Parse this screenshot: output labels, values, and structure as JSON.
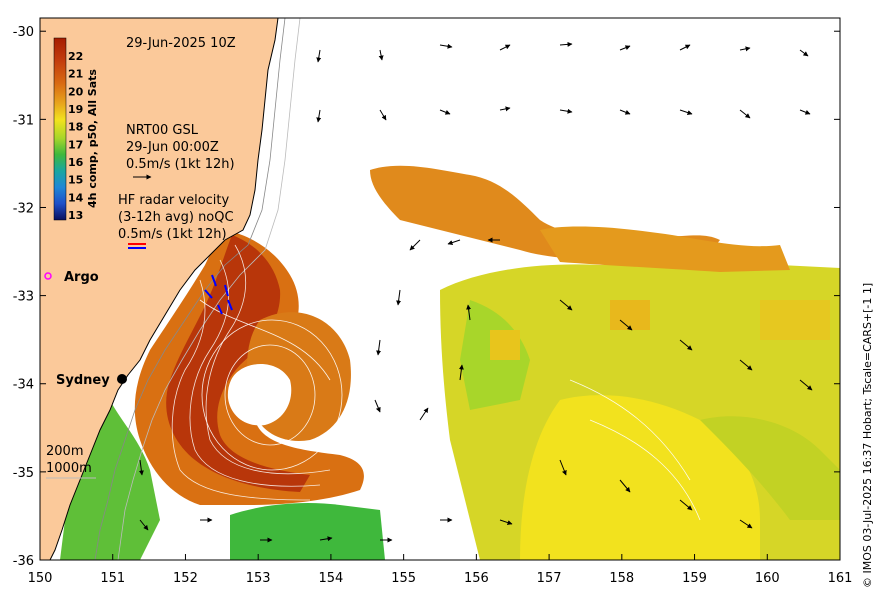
{
  "map": {
    "date_label": "29-Jun-2025 10Z",
    "colorbar_title": "4h comp, p50, All Sats",
    "colorbar_ticks": [
      "22",
      "21",
      "20",
      "19",
      "18",
      "17",
      "16",
      "15",
      "14",
      "13"
    ],
    "colorbar_colors": [
      "#a61c00",
      "#c23b0c",
      "#d96a12",
      "#e8a51c",
      "#f2e21e",
      "#a8d62a",
      "#3fb83c",
      "#1aa6a0",
      "#1f87d6",
      "#1f4fc8",
      "#122a9c",
      "#0a0f5e"
    ],
    "gsl_lines": [
      "NRT00 GSL",
      "29-Jun 00:00Z",
      "0.5m/s (1kt 12h)"
    ],
    "hf_lines": [
      "HF radar velocity",
      "(3-12h avg) noQC",
      "0.5m/s (1kt 12h)"
    ],
    "argo_label": "Argo",
    "sydney_label": "Sydney",
    "iso_200": "200m",
    "iso_1000": "1000m",
    "credit": "© IMOS 03-Jul-2025 16:37 Hobart; Tscale=CARS+[-1 1]",
    "x_ticks": [
      "150",
      "151",
      "152",
      "153",
      "154",
      "155",
      "156",
      "157",
      "158",
      "159",
      "160",
      "161"
    ],
    "y_ticks": [
      "-30",
      "-31",
      "-32",
      "-33",
      "-34",
      "-35",
      "-36"
    ],
    "x_range": [
      150,
      161
    ],
    "y_range": [
      -36,
      -29.85
    ],
    "land_color": "#fbc99a",
    "argo_color": "#ff00ff",
    "hf_colors": [
      "#ff0000",
      "#0000ff"
    ]
  }
}
